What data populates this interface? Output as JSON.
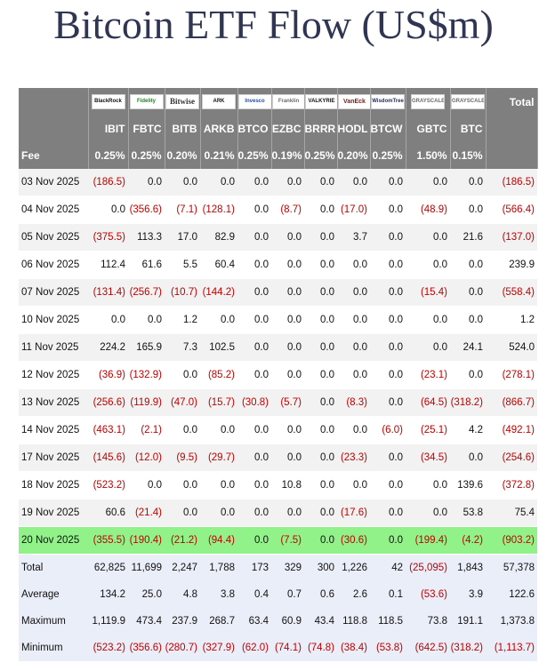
{
  "page": {
    "title": "Bitcoin ETF Flow (US$m)"
  },
  "chart_data": {
    "type": "table",
    "title": "Bitcoin ETF Flow (US$m)",
    "issuers": [
      "BlackRock",
      "Fidelity",
      "Bitwise",
      "ARK",
      "Invesco",
      "Franklin",
      "VALKYRIE",
      "VanEck",
      "WisdomTree",
      "GRAYSCALE",
      "GRAYSCALE"
    ],
    "total_header": "Total",
    "tickers": [
      "IBIT",
      "FBTC",
      "BITB",
      "ARKB",
      "BTCO",
      "EZBC",
      "BRRR",
      "HODL",
      "BTCW",
      "GBTC",
      "BTC"
    ],
    "fee_label": "Fee",
    "fees": [
      "0.25%",
      "0.25%",
      "0.20%",
      "0.21%",
      "0.25%",
      "0.19%",
      "0.25%",
      "0.20%",
      "0.25%",
      "1.50%",
      "0.15%"
    ],
    "rows": [
      {
        "date": "03 Nov 2025",
        "values": [
          "(186.5)",
          "0.0",
          "0.0",
          "0.0",
          "0.0",
          "0.0",
          "0.0",
          "0.0",
          "0.0",
          "0.0",
          "0.0"
        ],
        "total": "(186.5)"
      },
      {
        "date": "04 Nov 2025",
        "values": [
          "0.0",
          "(356.6)",
          "(7.1)",
          "(128.1)",
          "0.0",
          "(8.7)",
          "0.0",
          "(17.0)",
          "0.0",
          "(48.9)",
          "0.0"
        ],
        "total": "(566.4)"
      },
      {
        "date": "05 Nov 2025",
        "values": [
          "(375.5)",
          "113.3",
          "17.0",
          "82.9",
          "0.0",
          "0.0",
          "0.0",
          "3.7",
          "0.0",
          "0.0",
          "21.6"
        ],
        "total": "(137.0)"
      },
      {
        "date": "06 Nov 2025",
        "values": [
          "112.4",
          "61.6",
          "5.5",
          "60.4",
          "0.0",
          "0.0",
          "0.0",
          "0.0",
          "0.0",
          "0.0",
          "0.0"
        ],
        "total": "239.9"
      },
      {
        "date": "07 Nov 2025",
        "values": [
          "(131.4)",
          "(256.7)",
          "(10.7)",
          "(144.2)",
          "0.0",
          "0.0",
          "0.0",
          "0.0",
          "0.0",
          "(15.4)",
          "0.0"
        ],
        "total": "(558.4)"
      },
      {
        "date": "10 Nov 2025",
        "values": [
          "0.0",
          "0.0",
          "1.2",
          "0.0",
          "0.0",
          "0.0",
          "0.0",
          "0.0",
          "0.0",
          "0.0",
          "0.0"
        ],
        "total": "1.2"
      },
      {
        "date": "11 Nov 2025",
        "values": [
          "224.2",
          "165.9",
          "7.3",
          "102.5",
          "0.0",
          "0.0",
          "0.0",
          "0.0",
          "0.0",
          "0.0",
          "24.1"
        ],
        "total": "524.0"
      },
      {
        "date": "12 Nov 2025",
        "values": [
          "(36.9)",
          "(132.9)",
          "0.0",
          "(85.2)",
          "0.0",
          "0.0",
          "0.0",
          "0.0",
          "0.0",
          "(23.1)",
          "0.0"
        ],
        "total": "(278.1)"
      },
      {
        "date": "13 Nov 2025",
        "values": [
          "(256.6)",
          "(119.9)",
          "(47.0)",
          "(15.7)",
          "(30.8)",
          "(5.7)",
          "0.0",
          "(8.3)",
          "0.0",
          "(64.5)",
          "(318.2)"
        ],
        "total": "(866.7)"
      },
      {
        "date": "14 Nov 2025",
        "values": [
          "(463.1)",
          "(2.1)",
          "0.0",
          "0.0",
          "0.0",
          "0.0",
          "0.0",
          "0.0",
          "(6.0)",
          "(25.1)",
          "4.2"
        ],
        "total": "(492.1)"
      },
      {
        "date": "17 Nov 2025",
        "values": [
          "(145.6)",
          "(12.0)",
          "(9.5)",
          "(29.7)",
          "0.0",
          "0.0",
          "0.0",
          "(23.3)",
          "0.0",
          "(34.5)",
          "0.0"
        ],
        "total": "(254.6)"
      },
      {
        "date": "18 Nov 2025",
        "values": [
          "(523.2)",
          "0.0",
          "0.0",
          "0.0",
          "0.0",
          "10.8",
          "0.0",
          "0.0",
          "0.0",
          "0.0",
          "139.6"
        ],
        "total": "(372.8)"
      },
      {
        "date": "19 Nov 2025",
        "values": [
          "60.6",
          "(21.4)",
          "0.0",
          "0.0",
          "0.0",
          "0.0",
          "0.0",
          "(17.6)",
          "0.0",
          "0.0",
          "53.8"
        ],
        "total": "75.4"
      },
      {
        "date": "20 Nov 2025",
        "values": [
          "(355.5)",
          "(190.4)",
          "(21.2)",
          "(94.4)",
          "0.0",
          "(7.5)",
          "0.0",
          "(30.6)",
          "0.0",
          "(199.4)",
          "(4.2)"
        ],
        "total": "(903.2)",
        "highlight": true
      }
    ],
    "stats": [
      {
        "label": "Total",
        "values": [
          "62,825",
          "11,699",
          "2,247",
          "1,788",
          "173",
          "329",
          "300",
          "1,226",
          "42",
          "(25,095)",
          "1,843"
        ],
        "total": "57,378"
      },
      {
        "label": "Average",
        "values": [
          "134.2",
          "25.0",
          "4.8",
          "3.8",
          "0.4",
          "0.7",
          "0.6",
          "2.6",
          "0.1",
          "(53.6)",
          "3.9"
        ],
        "total": "122.6"
      },
      {
        "label": "Maximum",
        "values": [
          "1,119.9",
          "473.4",
          "237.9",
          "268.7",
          "63.4",
          "60.9",
          "43.4",
          "118.8",
          "118.5",
          "73.8",
          "191.1"
        ],
        "total": "1,373.8"
      },
      {
        "label": "Minimum",
        "values": [
          "(523.2)",
          "(356.6)",
          "(280.7)",
          "(327.9)",
          "(62.0)",
          "(74.1)",
          "(74.8)",
          "(38.4)",
          "(53.8)",
          "(642.5)",
          "(318.2)"
        ],
        "total": "(1,113.7)"
      }
    ],
    "colors": {
      "header": "#7f7f7f",
      "negative": "#c00000",
      "highlight_row": "#92f28a",
      "stats_bg": "#eaeef8",
      "title": "#2f3553"
    }
  }
}
